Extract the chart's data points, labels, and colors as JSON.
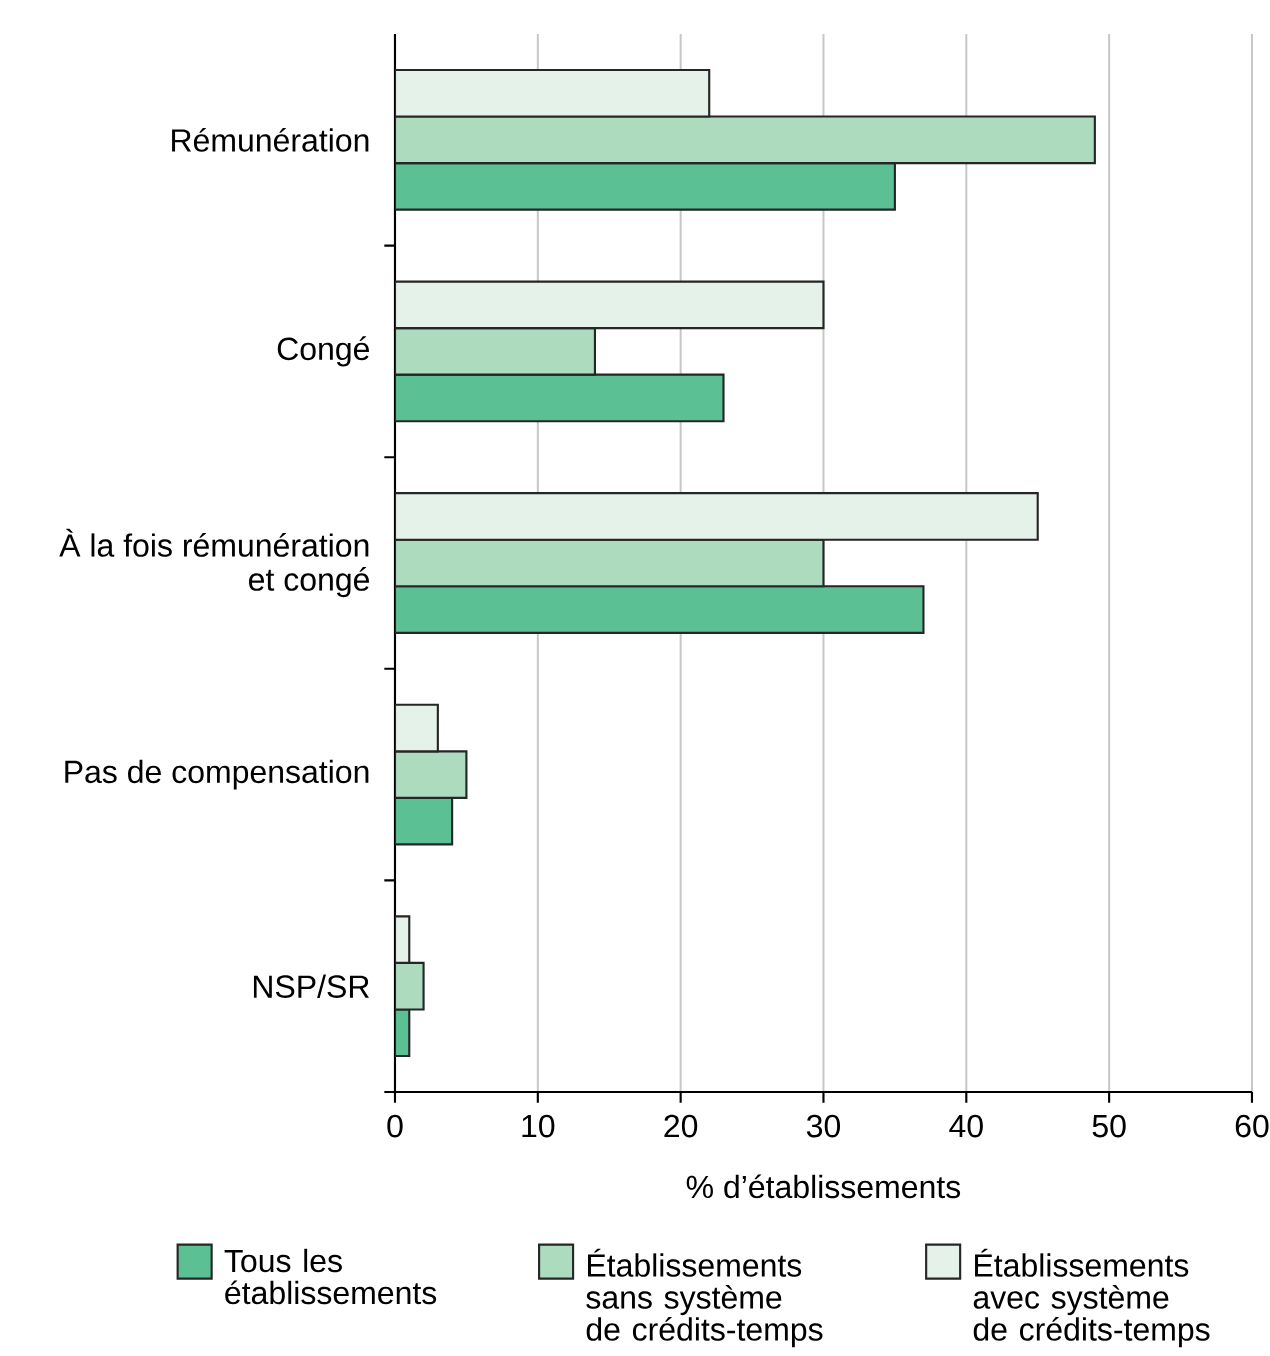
{
  "chart_data": {
    "type": "bar",
    "orientation": "horizontal",
    "xlabel": "% d’établissements",
    "categories": [
      "Rémunération",
      "Congé",
      "À la fois rémunération et congé",
      "Pas de compensation",
      "NSP/SR"
    ],
    "series": [
      {
        "name": "Tous les établissements",
        "color": "#5bc194",
        "values": [
          35,
          23,
          37,
          4,
          1
        ]
      },
      {
        "name": "Établissements sans système de crédits-temps",
        "color": "#acdbbe",
        "values": [
          49,
          14,
          30,
          5,
          2
        ]
      },
      {
        "name": "Établissements avec système de crédits-temps",
        "color": "#e4f2e9",
        "values": [
          22,
          30,
          45,
          3,
          1
        ]
      }
    ],
    "xlim": [
      0,
      60
    ],
    "xticks": [
      0,
      10,
      20,
      30,
      40,
      50,
      60
    ],
    "grid": "x",
    "legend": "bottom"
  }
}
